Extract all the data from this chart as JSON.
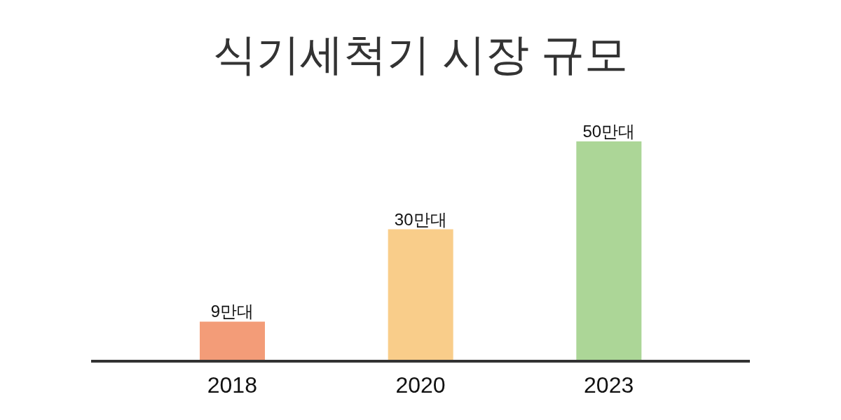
{
  "chart_data": {
    "type": "bar",
    "title": "식기세척기 시장 규모",
    "categories": [
      "2018",
      "2020",
      "2023"
    ],
    "values": [
      9,
      30,
      50
    ],
    "colors": [
      "#f39c78",
      "#f9cd8a",
      "#acd697"
    ],
    "value_labels": [
      "9만대",
      "30만대",
      "50만대"
    ],
    "grid": false,
    "legend": false
  }
}
